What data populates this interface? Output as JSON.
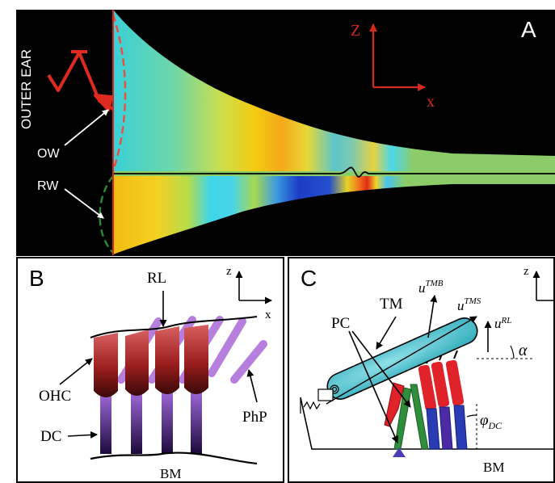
{
  "panel_a": {
    "letter": "A",
    "outer_ear": "OUTER EAR",
    "ow": "OW",
    "rw": "RW",
    "axis_z": "Z",
    "axis_x": "x",
    "colors": {
      "background": "#000000",
      "axes": "#d42a1e",
      "ow_dashed": "#ef4b3c",
      "rw_dashed": "#2c8c34",
      "partition": "#8ccc68"
    }
  },
  "panel_b": {
    "letter": "B",
    "rl": "RL",
    "ohc": "OHC",
    "dc": "DC",
    "php": "PhP",
    "bm": "BM",
    "axis_z": "z",
    "axis_x": "x",
    "colors": {
      "ohc_red": "#9a1c1c",
      "dc_purple": "#5a1e8c",
      "php_purple": "#b77fdd"
    }
  },
  "panel_c": {
    "letter": "C",
    "tm": "TM",
    "pc": "PC",
    "bm": "BM",
    "axis_z": "z",
    "u_tmb": "u",
    "u_tmb_sub": "TMB",
    "u_tms": "u",
    "u_tms_sub": "TMS",
    "u_rl": "u",
    "u_rl_sub": "RL",
    "alpha": "α",
    "phi": "φ",
    "phi_sub": "DC",
    "colors": {
      "tm": "#5ec8d4",
      "pc_green": "#2f8e3c",
      "red": "#e0232a",
      "blue": "#2a3cb4"
    }
  }
}
